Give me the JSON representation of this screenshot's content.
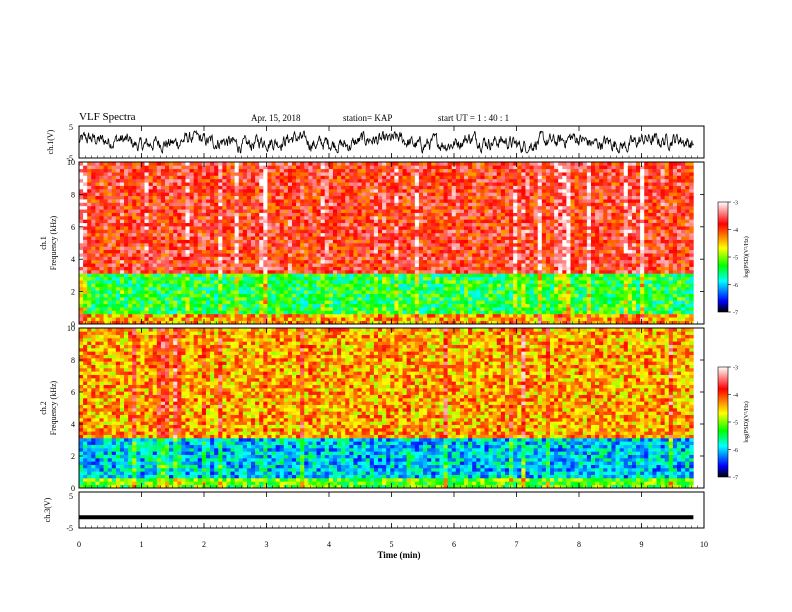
{
  "header": {
    "title": "VLF Spectra",
    "date": "Apr. 15, 2018",
    "station": "station= KAP",
    "start": "start UT =   1 : 40 : 1"
  },
  "chart_data": [
    {
      "type": "line",
      "panel": "ch1-waveform",
      "ylabel": "ch.1(V)",
      "ylim": [
        -5,
        5
      ],
      "y_ticks": [
        "5",
        "-5"
      ],
      "xlim": [
        0,
        10
      ],
      "description_values": "noisy waveform oscillating between about -3 and 3 V"
    },
    {
      "type": "heatmap",
      "panel": "ch1-spectrogram",
      "ylabel": "ch.1\nFrequency (kHz)",
      "ylabel_lines": [
        "ch.1",
        "Frequency (kHz)"
      ],
      "ylim": [
        0,
        10
      ],
      "y_ticks": [
        "0",
        "2",
        "4",
        "6",
        "8",
        "10"
      ],
      "xlim": [
        0,
        9.83
      ],
      "colorbar": {
        "label": "log(PSD)(V²/Hz)",
        "range": [
          -7,
          -3
        ],
        "ticks": [
          "-3",
          "-4",
          "-5",
          "-6",
          "-7"
        ]
      }
    },
    {
      "type": "heatmap",
      "panel": "ch2-spectrogram",
      "ylabel_lines": [
        "ch.2",
        "Frequency (kHz)"
      ],
      "ylim": [
        0,
        10
      ],
      "y_ticks": [
        "0",
        "2",
        "4",
        "6",
        "8",
        "10"
      ],
      "xlim": [
        0,
        9.83
      ],
      "colorbar": {
        "label": "log(PSD)(V²/Hz)",
        "range": [
          -7,
          -3
        ],
        "ticks": [
          "-3",
          "-4",
          "-5",
          "-6",
          "-7"
        ]
      }
    },
    {
      "type": "line",
      "panel": "ch3-waveform",
      "ylabel": "ch.3(V)",
      "ylim": [
        -5,
        5
      ],
      "y_ticks": [
        "5",
        "-5"
      ],
      "xlim": [
        0,
        10
      ],
      "constant_value": -2
    }
  ],
  "x_axis": {
    "label": "Time (min)",
    "range": [
      0,
      10
    ],
    "ticks": [
      "0",
      "1",
      "2",
      "3",
      "4",
      "5",
      "6",
      "7",
      "8",
      "9",
      "10"
    ]
  },
  "colors": {
    "colormap": [
      "#000000",
      "#0000ff",
      "#00ffff",
      "#00ff00",
      "#ffff00",
      "#ff0000",
      "#ffffff"
    ]
  }
}
